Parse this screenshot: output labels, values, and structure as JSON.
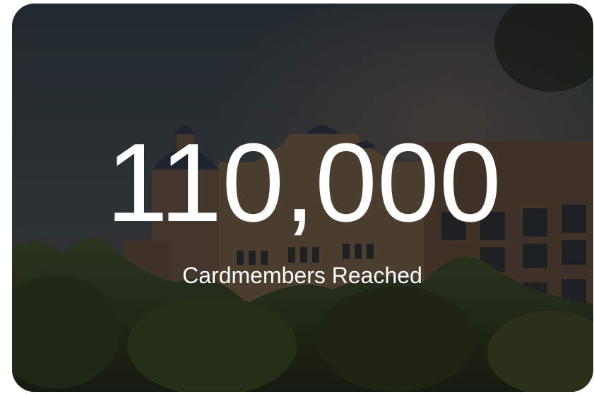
{
  "stat": {
    "value": "110,000",
    "label": "Cardmembers Reached"
  }
}
